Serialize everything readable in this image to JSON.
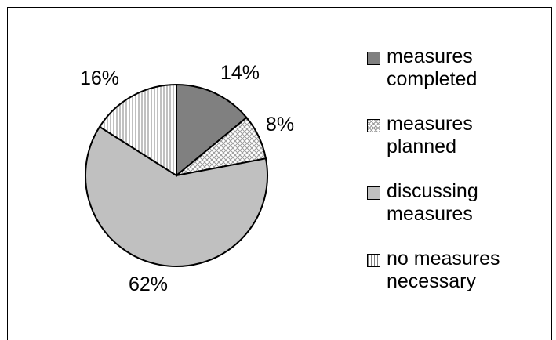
{
  "chart_data": {
    "type": "pie",
    "title": "",
    "categories": [
      "measures completed",
      "measures planned",
      "discussing measures",
      "no measures necessary"
    ],
    "values": [
      14,
      8,
      62,
      16
    ],
    "labels": [
      "14%",
      "8%",
      "62%",
      "16%"
    ],
    "legend_position": "right",
    "legend": [
      {
        "label": "measures\ncompleted"
      },
      {
        "label": "measures\nplanned"
      },
      {
        "label": "discussing\nmeasures"
      },
      {
        "label": "no measures\nnecessary"
      }
    ],
    "colors": [
      "#808080",
      "#e8e8e8",
      "#c0c0c0",
      "#ffffff"
    ]
  }
}
